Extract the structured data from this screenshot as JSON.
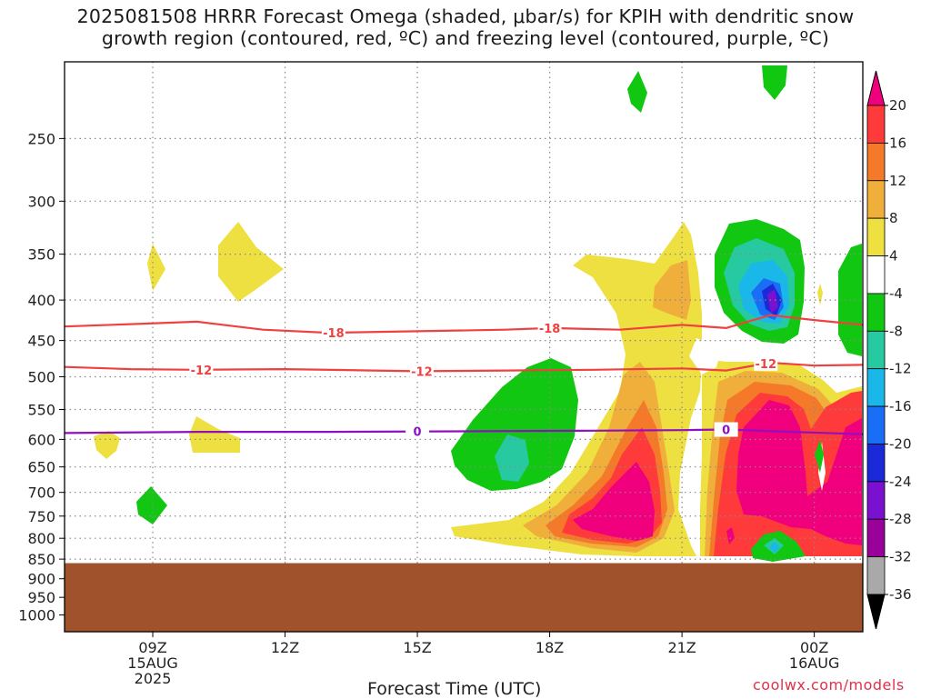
{
  "title": {
    "line1": "2025081508 HRRR Forecast Omega (shaded, μbar/s) for KPIH with dendritic snow",
    "line2": "growth region (contoured, red, ºC) and freezing level (contoured, purple, ºC)"
  },
  "xlabel": "Forecast Time (UTC)",
  "credit": "coolwx.com/models",
  "chart_data": {
    "type": "heatmap",
    "y_axis": {
      "scale": "pressure (log)",
      "ylim": [
        200,
        1050
      ],
      "ticks": [
        250,
        300,
        350,
        400,
        450,
        500,
        550,
        600,
        650,
        700,
        750,
        800,
        850,
        900,
        950,
        1000
      ],
      "labels": [
        "250",
        "300",
        "350",
        "400",
        "450",
        "500",
        "550",
        "600",
        "650",
        "700",
        "750",
        "800",
        "850",
        "900",
        "950",
        "1000"
      ]
    },
    "x_axis": {
      "unit": "forecast hour",
      "xlim": [
        7.0,
        25.1
      ],
      "ticks": [
        9,
        12,
        15,
        18,
        21,
        24
      ],
      "labels": [
        [
          "09Z",
          "15AUG",
          "2025"
        ],
        [
          "12Z",
          "",
          ""
        ],
        [
          "15Z",
          "",
          ""
        ],
        [
          "18Z",
          "",
          ""
        ],
        [
          "21Z",
          "",
          ""
        ],
        [
          "00Z",
          "16AUG",
          ""
        ]
      ]
    },
    "grid": true,
    "ground_level_hPa": 860,
    "ground_color": "#a0522d",
    "colorbar": {
      "labels": [
        "20",
        "16",
        "12",
        "8",
        "4",
        "-4",
        "-8",
        "-12",
        "-16",
        "-20",
        "-24",
        "-28",
        "-32",
        "-36"
      ],
      "colors": [
        "#f0007c",
        "#ff3a3a",
        "#f47a2a",
        "#f0ae3a",
        "#ede040",
        "#ffffff",
        "#11c711",
        "#26c9a0",
        "#1ab8e8",
        "#1a6ef5",
        "#1a2ad8",
        "#7a10d0",
        "#9a009a",
        "#a9a9a9",
        "#000000"
      ]
    },
    "contours": [
      {
        "name": "-18",
        "color": "#f04040",
        "label_x": [
          13.1,
          18.0
        ],
        "points": [
          [
            7.0,
            432
          ],
          [
            8.5,
            429
          ],
          [
            10.0,
            426
          ],
          [
            11.5,
            436
          ],
          [
            13.0,
            440
          ],
          [
            15.0,
            438
          ],
          [
            17.0,
            436
          ],
          [
            18.0,
            434
          ],
          [
            19.6,
            436
          ],
          [
            21.0,
            430
          ],
          [
            22.0,
            434
          ],
          [
            23.0,
            418
          ],
          [
            24.0,
            424
          ],
          [
            25.1,
            430
          ]
        ]
      },
      {
        "name": "-12",
        "color": "#f04040",
        "label_x": [
          10.1,
          15.1,
          22.9
        ],
        "points": [
          [
            7.0,
            486
          ],
          [
            8.5,
            489
          ],
          [
            10.0,
            490
          ],
          [
            12.0,
            489
          ],
          [
            14.0,
            491
          ],
          [
            15.0,
            492
          ],
          [
            17.0,
            491
          ],
          [
            19.0,
            490
          ],
          [
            21.0,
            488
          ],
          [
            22.0,
            491
          ],
          [
            23.0,
            480
          ],
          [
            24.0,
            484
          ],
          [
            25.1,
            483
          ]
        ]
      },
      {
        "name": "0",
        "color": "#9010c0",
        "label_x": [
          15.0,
          22.0
        ],
        "points": [
          [
            7.0,
            589
          ],
          [
            10.0,
            587
          ],
          [
            13.0,
            587
          ],
          [
            16.0,
            586
          ],
          [
            19.0,
            585
          ],
          [
            21.0,
            584
          ],
          [
            22.0,
            583
          ],
          [
            23.5,
            587
          ],
          [
            25.1,
            591
          ]
        ]
      }
    ]
  }
}
